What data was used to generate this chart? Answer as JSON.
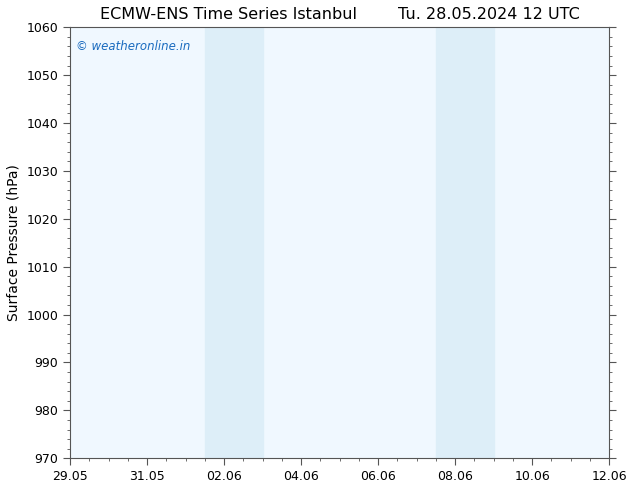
{
  "title_left": "ECMW-ENS Time Series Istanbul",
  "title_right": "Tu. 28.05.2024 12 UTC",
  "ylabel": "Surface Pressure (hPa)",
  "watermark": "© weatheronline.in",
  "watermark_color": "#1a6bbf",
  "ylim": [
    970,
    1060
  ],
  "yticks": [
    970,
    980,
    990,
    1000,
    1010,
    1020,
    1030,
    1040,
    1050,
    1060
  ],
  "x_total_days": 14,
  "xtick_labels": [
    "29.05",
    "31.05",
    "02.06",
    "04.06",
    "06.06",
    "08.06",
    "10.06",
    "12.06"
  ],
  "xtick_positions_days": [
    0,
    2,
    4,
    6,
    8,
    10,
    12,
    14
  ],
  "shaded_bands": [
    {
      "start_day": 3.5,
      "end_day": 5.0
    },
    {
      "start_day": 9.5,
      "end_day": 11.0
    }
  ],
  "shade_color": "#ddeef8",
  "background_color": "#ffffff",
  "plot_bg_color": "#f0f8ff",
  "border_color": "#555555",
  "title_fontsize": 11.5,
  "label_fontsize": 10,
  "tick_fontsize": 9,
  "watermark_fontsize": 8.5
}
